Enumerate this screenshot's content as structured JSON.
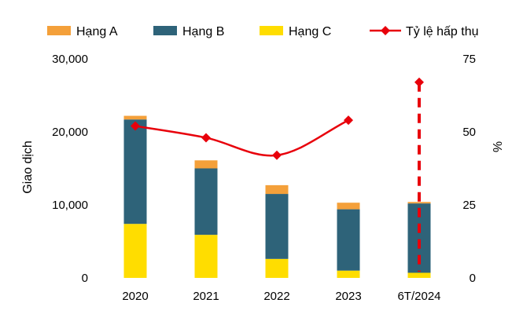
{
  "chart_data": {
    "type": "bar",
    "categories": [
      "2020",
      "2021",
      "2022",
      "2023",
      "6T/2024"
    ],
    "series": [
      {
        "name": "Hạng C",
        "kind": "bar",
        "color": "#FFDD00",
        "values": [
          7400,
          5900,
          2600,
          1000,
          700
        ]
      },
      {
        "name": "Hạng B",
        "kind": "bar",
        "color": "#2E6379",
        "values": [
          14300,
          9100,
          8900,
          8400,
          9500
        ]
      },
      {
        "name": "Hạng A",
        "kind": "bar",
        "color": "#F4A03A",
        "values": [
          500,
          1100,
          1200,
          900,
          200
        ]
      },
      {
        "name": "Tỷ lệ hấp thụ",
        "kind": "line",
        "axis": "right",
        "color": "#E8000B",
        "values": [
          52,
          48,
          42,
          54,
          67
        ]
      }
    ],
    "ylabel": "Giao dịch",
    "ylabel_right": "%",
    "ylim": [
      0,
      30000
    ],
    "ylim_right": [
      0,
      75
    ],
    "yticks": [
      "0",
      "10,000",
      "20,000",
      "30,000"
    ],
    "yticks_right": [
      "0",
      "25",
      "50",
      "75"
    ],
    "legend": {
      "position": "top",
      "items": [
        {
          "label": "Hạng A",
          "color": "#F4A03A",
          "kind": "bar"
        },
        {
          "label": "Hạng B",
          "color": "#2E6379",
          "kind": "bar"
        },
        {
          "label": "Hạng C",
          "color": "#FFDD00",
          "kind": "bar"
        },
        {
          "label": "Tỷ lệ hấp thụ",
          "color": "#E8000B",
          "kind": "line"
        }
      ]
    },
    "grid": false
  }
}
